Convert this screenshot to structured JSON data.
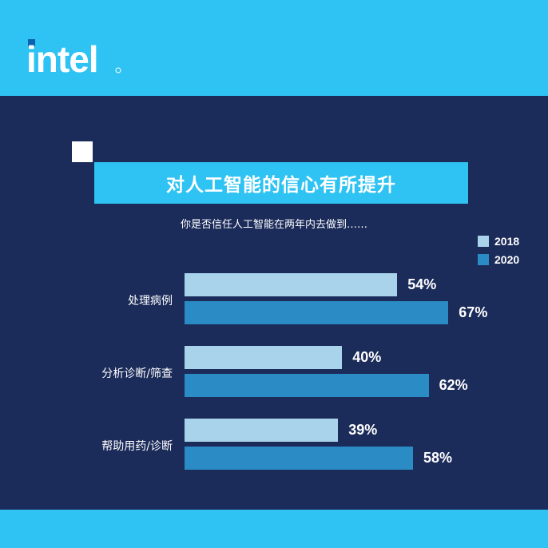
{
  "logo_text": "intel",
  "colors": {
    "background": "#1b2b5a",
    "band": "#2ec3f3",
    "series_2018": "#a9d3ea",
    "series_2020": "#2b8bc4"
  },
  "chart_data": {
    "type": "bar",
    "orientation": "horizontal",
    "title": "对人工智能的信心有所提升",
    "subtitle": "你是否信任人工智能在两年内去做到……",
    "categories": [
      "处理病例",
      "分析诊断/筛查",
      "帮助用药/诊断"
    ],
    "series": [
      {
        "name": "2018",
        "values": [
          54,
          40,
          39
        ],
        "labels": [
          "54%",
          "40%",
          "39%"
        ]
      },
      {
        "name": "2020",
        "values": [
          67,
          62,
          58
        ],
        "labels": [
          "67%",
          "62%",
          "58%"
        ]
      }
    ],
    "unit": "%",
    "xlim": [
      0,
      100
    ],
    "legend": "top-right",
    "grid": false
  }
}
